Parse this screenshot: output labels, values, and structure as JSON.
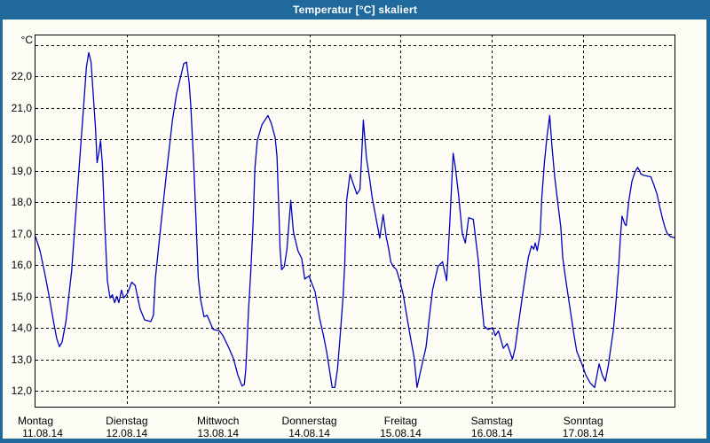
{
  "window": {
    "title": "Temperatur [°C] skaliert",
    "title_bar_color": "#20699c",
    "frame_color": "#20699c",
    "content_background": "#fdfdf6"
  },
  "chart_data": {
    "type": "line",
    "title": "Temperatur [°C] skaliert",
    "series_name": "Temperatur",
    "line_color": "#0000bd",
    "grid": {
      "style": "dashed",
      "color": "#000000"
    },
    "y_axis": {
      "unit_label": "°C",
      "gridline_min": 12,
      "gridline_max": 23,
      "step": 1,
      "labeled_min": 12,
      "labeled_max": 22,
      "tick_labels": [
        "22,0",
        "21,0",
        "20,0",
        "19,0",
        "18,0",
        "17,0",
        "16,0",
        "15,0",
        "14,0",
        "13,0",
        "12,0"
      ]
    },
    "x_axis": {
      "total_hours": 168,
      "days": [
        {
          "name": "Montag",
          "date": "11.08.14"
        },
        {
          "name": "Dienstag",
          "date": "12.08.14"
        },
        {
          "name": "Mittwoch",
          "date": "13.08.14"
        },
        {
          "name": "Donnerstag",
          "date": "14.08.14"
        },
        {
          "name": "Freitag",
          "date": "15.08.14"
        },
        {
          "name": "Samstag",
          "date": "16.08.14"
        },
        {
          "name": "Sonntag",
          "date": "17.08.14"
        }
      ]
    },
    "points_hours_temp": [
      [
        0,
        16.9
      ],
      [
        1.2,
        16.45
      ],
      [
        2.4,
        15.75
      ],
      [
        3.6,
        15.0
      ],
      [
        4.8,
        14.15
      ],
      [
        5.6,
        13.65
      ],
      [
        6.3,
        13.4
      ],
      [
        7.0,
        13.55
      ],
      [
        8.0,
        14.2
      ],
      [
        9.5,
        15.8
      ],
      [
        11.0,
        18.3
      ],
      [
        12.5,
        20.8
      ],
      [
        13.4,
        22.3
      ],
      [
        14.0,
        22.75
      ],
      [
        14.6,
        22.45
      ],
      [
        15.2,
        21.4
      ],
      [
        15.8,
        20.3
      ],
      [
        16.2,
        19.25
      ],
      [
        16.7,
        19.6
      ],
      [
        17.1,
        19.95
      ],
      [
        17.6,
        19.2
      ],
      [
        18.2,
        17.3
      ],
      [
        18.9,
        15.5
      ],
      [
        19.6,
        14.95
      ],
      [
        20.2,
        15.05
      ],
      [
        20.8,
        14.8
      ],
      [
        21.4,
        15.0
      ],
      [
        21.9,
        14.8
      ],
      [
        22.6,
        15.2
      ],
      [
        23.2,
        14.95
      ],
      [
        24.2,
        15.1
      ],
      [
        25.3,
        15.45
      ],
      [
        26.2,
        15.35
      ],
      [
        27.5,
        14.6
      ],
      [
        28.7,
        14.25
      ],
      [
        30.3,
        14.2
      ],
      [
        31.0,
        14.4
      ],
      [
        31.5,
        15.55
      ],
      [
        33.0,
        17.3
      ],
      [
        34.5,
        19.0
      ],
      [
        36.0,
        20.6
      ],
      [
        37.1,
        21.45
      ],
      [
        38.2,
        22.0
      ],
      [
        39.0,
        22.4
      ],
      [
        39.7,
        22.45
      ],
      [
        40.4,
        21.8
      ],
      [
        40.8,
        21.1
      ],
      [
        41.6,
        19.2
      ],
      [
        42.2,
        17.4
      ],
      [
        42.8,
        15.6
      ],
      [
        43.4,
        14.9
      ],
      [
        44.3,
        14.35
      ],
      [
        45.1,
        14.4
      ],
      [
        46.7,
        13.95
      ],
      [
        48.4,
        13.9
      ],
      [
        49.3,
        13.75
      ],
      [
        50.9,
        13.35
      ],
      [
        52.1,
        13.0
      ],
      [
        53.2,
        12.5
      ],
      [
        54.3,
        12.15
      ],
      [
        54.9,
        12.2
      ],
      [
        55.3,
        12.7
      ],
      [
        55.6,
        13.45
      ],
      [
        56.0,
        14.55
      ],
      [
        56.6,
        15.8
      ],
      [
        57.2,
        17.3
      ],
      [
        57.7,
        19.1
      ],
      [
        58.3,
        19.95
      ],
      [
        59.5,
        20.45
      ],
      [
        60.3,
        20.6
      ],
      [
        61.1,
        20.75
      ],
      [
        62.0,
        20.5
      ],
      [
        63.0,
        20.05
      ],
      [
        63.5,
        19.45
      ],
      [
        63.9,
        18.0
      ],
      [
        64.3,
        16.5
      ],
      [
        64.7,
        15.85
      ],
      [
        65.4,
        15.95
      ],
      [
        66.1,
        16.5
      ],
      [
        67.1,
        18.05
      ],
      [
        67.8,
        17.05
      ],
      [
        69.0,
        16.45
      ],
      [
        70.0,
        16.2
      ],
      [
        70.8,
        15.55
      ],
      [
        71.9,
        15.65
      ],
      [
        73.5,
        15.15
      ],
      [
        74.7,
        14.3
      ],
      [
        75.8,
        13.7
      ],
      [
        76.6,
        13.2
      ],
      [
        78.0,
        12.1
      ],
      [
        78.7,
        12.1
      ],
      [
        79.4,
        12.7
      ],
      [
        80.1,
        13.75
      ],
      [
        80.9,
        15.05
      ],
      [
        81.3,
        16.0
      ],
      [
        81.8,
        18.05
      ],
      [
        82.7,
        18.9
      ],
      [
        83.2,
        18.7
      ],
      [
        84.5,
        18.25
      ],
      [
        85.3,
        18.4
      ],
      [
        85.7,
        19.35
      ],
      [
        86.2,
        20.6
      ],
      [
        86.7,
        19.85
      ],
      [
        87.0,
        19.4
      ],
      [
        87.9,
        18.7
      ],
      [
        88.5,
        18.15
      ],
      [
        89.2,
        17.7
      ],
      [
        90.5,
        16.85
      ],
      [
        91.4,
        17.6
      ],
      [
        92.2,
        16.9
      ],
      [
        92.8,
        16.55
      ],
      [
        93.4,
        16.1
      ],
      [
        94.0,
        15.95
      ],
      [
        94.9,
        15.85
      ],
      [
        95.9,
        15.45
      ],
      [
        96.7,
        15.05
      ],
      [
        97.3,
        14.6
      ],
      [
        98.0,
        14.1
      ],
      [
        98.8,
        13.55
      ],
      [
        99.5,
        13.1
      ],
      [
        100.3,
        12.1
      ],
      [
        101.1,
        12.55
      ],
      [
        102.7,
        13.4
      ],
      [
        103.5,
        14.3
      ],
      [
        104.4,
        15.2
      ],
      [
        105.8,
        15.95
      ],
      [
        107.0,
        16.1
      ],
      [
        108.1,
        15.5
      ],
      [
        109.0,
        17.5
      ],
      [
        109.8,
        19.55
      ],
      [
        110.4,
        19.1
      ],
      [
        111.2,
        18.25
      ],
      [
        112.2,
        17.0
      ],
      [
        113.0,
        16.7
      ],
      [
        113.9,
        17.5
      ],
      [
        115.1,
        17.45
      ],
      [
        116.4,
        16.15
      ],
      [
        117.1,
        15.05
      ],
      [
        117.9,
        14.05
      ],
      [
        119.0,
        13.95
      ],
      [
        120.2,
        14.0
      ],
      [
        120.9,
        13.75
      ],
      [
        121.7,
        13.9
      ],
      [
        123.0,
        13.35
      ],
      [
        124.0,
        13.5
      ],
      [
        125.4,
        13.0
      ],
      [
        126.1,
        13.35
      ],
      [
        127.2,
        14.3
      ],
      [
        128.0,
        15.0
      ],
      [
        128.8,
        15.65
      ],
      [
        129.6,
        16.25
      ],
      [
        130.4,
        16.6
      ],
      [
        131.0,
        16.5
      ],
      [
        131.4,
        16.7
      ],
      [
        131.9,
        16.45
      ],
      [
        132.7,
        17.0
      ],
      [
        133.1,
        18.1
      ],
      [
        133.8,
        19.25
      ],
      [
        134.5,
        20.1
      ],
      [
        135.2,
        20.75
      ],
      [
        135.8,
        19.75
      ],
      [
        136.5,
        18.8
      ],
      [
        137.3,
        18.0
      ],
      [
        138.1,
        17.2
      ],
      [
        138.6,
        16.25
      ],
      [
        139.2,
        15.7
      ],
      [
        140.0,
        15.05
      ],
      [
        140.8,
        14.4
      ],
      [
        141.6,
        13.75
      ],
      [
        142.3,
        13.25
      ],
      [
        143.5,
        12.9
      ],
      [
        144.7,
        12.5
      ],
      [
        145.8,
        12.25
      ],
      [
        147.0,
        12.1
      ],
      [
        148.2,
        12.85
      ],
      [
        149.0,
        12.5
      ],
      [
        149.8,
        12.3
      ],
      [
        150.6,
        12.8
      ],
      [
        151.3,
        13.4
      ],
      [
        151.9,
        13.9
      ],
      [
        152.6,
        14.8
      ],
      [
        153.3,
        15.9
      ],
      [
        153.8,
        16.9
      ],
      [
        154.2,
        17.55
      ],
      [
        154.9,
        17.3
      ],
      [
        155.3,
        17.25
      ],
      [
        156.0,
        18.05
      ],
      [
        156.8,
        18.65
      ],
      [
        157.6,
        18.95
      ],
      [
        158.3,
        19.1
      ],
      [
        158.8,
        19.0
      ],
      [
        159.1,
        18.9
      ],
      [
        159.8,
        18.85
      ],
      [
        161.0,
        18.82
      ],
      [
        161.8,
        18.8
      ],
      [
        162.7,
        18.5
      ],
      [
        163.4,
        18.25
      ],
      [
        164.1,
        17.85
      ],
      [
        164.9,
        17.45
      ],
      [
        165.6,
        17.15
      ],
      [
        166.1,
        17.0
      ],
      [
        166.9,
        16.9
      ],
      [
        167.5,
        16.88
      ],
      [
        168,
        16.87
      ]
    ]
  }
}
